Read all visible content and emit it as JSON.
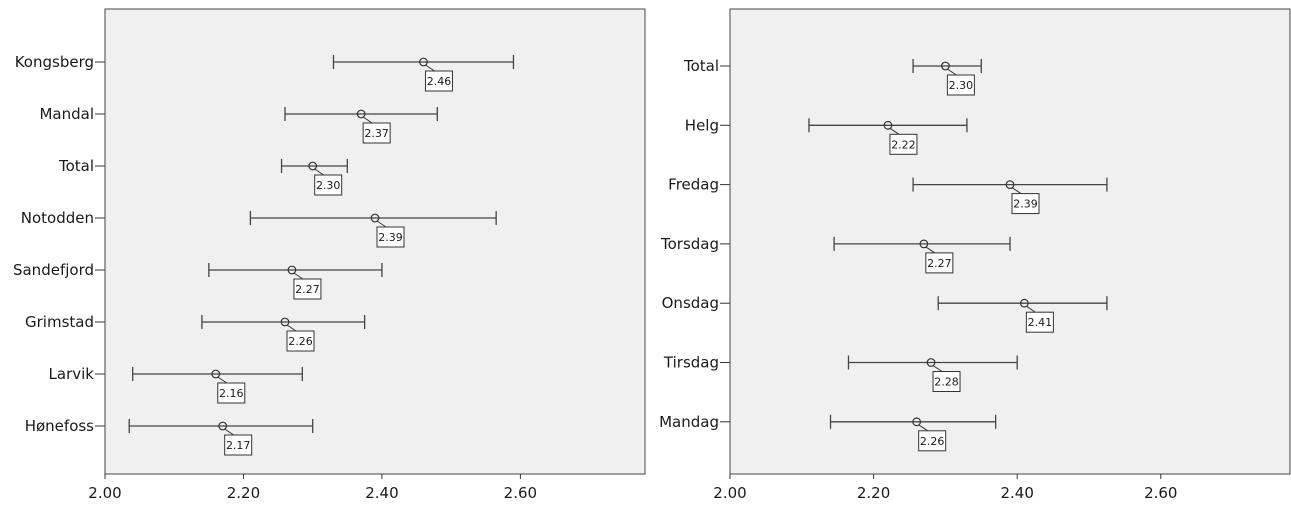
{
  "chart_data": [
    {
      "type": "errorbar",
      "orientation": "horizontal",
      "xlim": [
        2.0,
        2.78
      ],
      "xticks": [
        "2.00",
        "2.20",
        "2.40",
        "2.60"
      ],
      "grid": false,
      "series": [
        {
          "category": "Kongsberg",
          "mean": 2.46,
          "lower": 2.33,
          "upper": 2.59,
          "label": "2.46"
        },
        {
          "category": "Mandal",
          "mean": 2.37,
          "lower": 2.26,
          "upper": 2.48,
          "label": "2.37"
        },
        {
          "category": "Total",
          "mean": 2.3,
          "lower": 2.255,
          "upper": 2.35,
          "label": "2.30"
        },
        {
          "category": "Notodden",
          "mean": 2.39,
          "lower": 2.21,
          "upper": 2.565,
          "label": "2.39"
        },
        {
          "category": "Sandefjord",
          "mean": 2.27,
          "lower": 2.15,
          "upper": 2.4,
          "label": "2.27"
        },
        {
          "category": "Grimstad",
          "mean": 2.26,
          "lower": 2.14,
          "upper": 2.375,
          "label": "2.26"
        },
        {
          "category": "Larvik",
          "mean": 2.16,
          "lower": 2.04,
          "upper": 2.285,
          "label": "2.16"
        },
        {
          "category": "Hønefoss",
          "mean": 2.17,
          "lower": 2.035,
          "upper": 2.3,
          "label": "2.17"
        }
      ]
    },
    {
      "type": "errorbar",
      "orientation": "horizontal",
      "xlim": [
        2.0,
        2.78
      ],
      "xticks": [
        "2.00",
        "2.20",
        "2.40",
        "2.60"
      ],
      "grid": false,
      "series": [
        {
          "category": "Total",
          "mean": 2.3,
          "lower": 2.255,
          "upper": 2.35,
          "label": "2.30"
        },
        {
          "category": "Helg",
          "mean": 2.22,
          "lower": 2.11,
          "upper": 2.33,
          "label": "2.22"
        },
        {
          "category": "Fredag",
          "mean": 2.39,
          "lower": 2.255,
          "upper": 2.525,
          "label": "2.39"
        },
        {
          "category": "Torsdag",
          "mean": 2.27,
          "lower": 2.145,
          "upper": 2.39,
          "label": "2.27"
        },
        {
          "category": "Onsdag",
          "mean": 2.41,
          "lower": 2.29,
          "upper": 2.525,
          "label": "2.41"
        },
        {
          "category": "Tirsdag",
          "mean": 2.28,
          "lower": 2.165,
          "upper": 2.4,
          "label": "2.28"
        },
        {
          "category": "Mandag",
          "mean": 2.26,
          "lower": 2.14,
          "upper": 2.37,
          "label": "2.26"
        }
      ]
    }
  ]
}
